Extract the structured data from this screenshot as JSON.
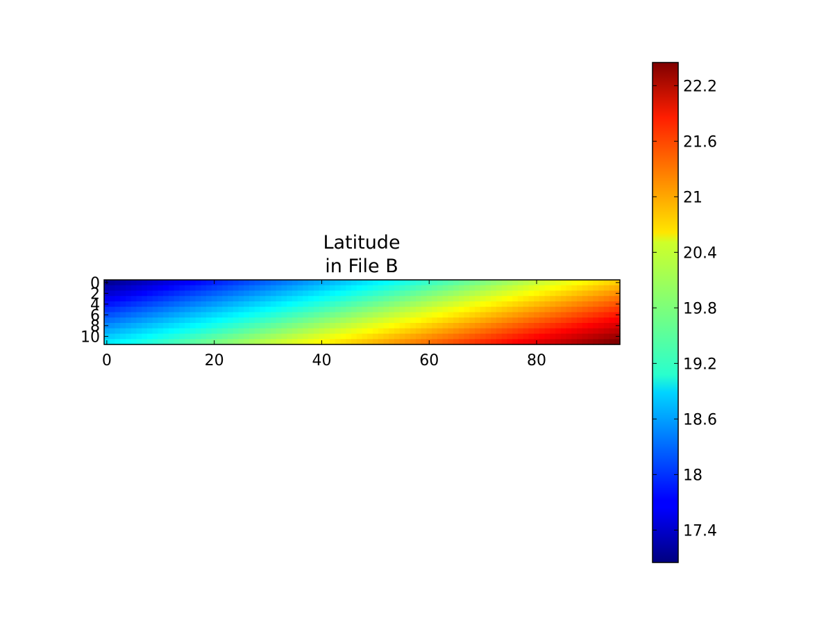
{
  "chart_data": {
    "type": "heatmap",
    "title_lines": [
      "Latitude",
      "in File B"
    ],
    "x_ticks": [
      "0",
      "20",
      "40",
      "60",
      "80"
    ],
    "x_tick_values": [
      0,
      20,
      40,
      60,
      80
    ],
    "y_ticks": [
      "0",
      "2",
      "4",
      "6",
      "8",
      "10"
    ],
    "y_tick_values": [
      0,
      2,
      4,
      6,
      8,
      10
    ],
    "xlim": [
      -0.5,
      95.5
    ],
    "ylim": [
      11.5,
      -0.5
    ],
    "grid_cols": 96,
    "grid_rows": 12,
    "value_corners": {
      "top_left": 17.15,
      "top_right": 20.7,
      "bottom_left": 18.95,
      "bottom_right": 22.45
    },
    "colormap": "jet",
    "colorbar": {
      "min": 17.05,
      "max": 22.45,
      "ticks": [
        "17.4",
        "18",
        "18.6",
        "19.2",
        "19.8",
        "20.4",
        "21",
        "21.6",
        "22.2"
      ],
      "tick_values": [
        17.4,
        18.0,
        18.6,
        19.2,
        19.8,
        20.4,
        21.0,
        21.6,
        22.2
      ],
      "placement": "right"
    },
    "grid": false
  }
}
